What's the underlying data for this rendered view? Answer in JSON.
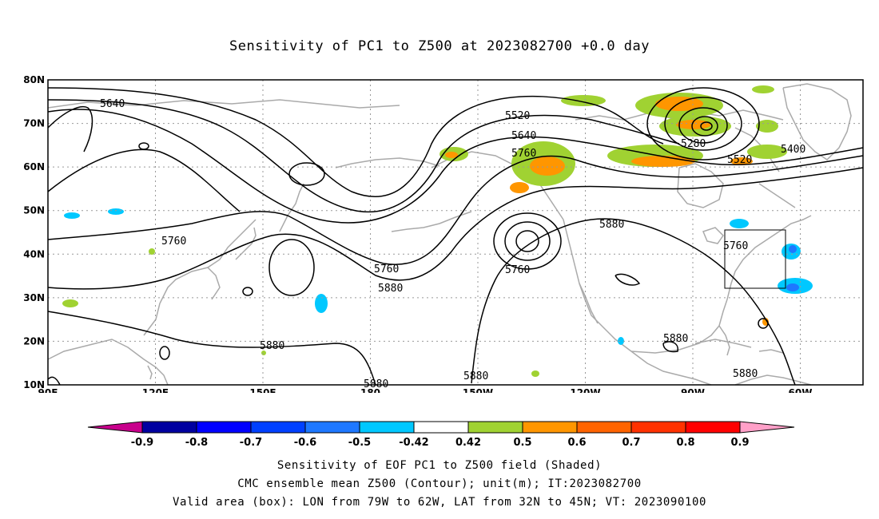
{
  "title": "Sensitivity of PC1 to Z500 at 2023082700 +0.0 day",
  "map": {
    "lon_range": [
      "90E",
      "30W"
    ],
    "lat_range": [
      "10N",
      "80N"
    ],
    "lat_ticks": [
      "80N",
      "70N",
      "60N",
      "50N",
      "40N",
      "30N",
      "20N",
      "10N"
    ],
    "lon_ticks": [
      "90E",
      "120E",
      "150E",
      "180",
      "150W",
      "120W",
      "90W",
      "60W"
    ],
    "grid": "dotted",
    "coastline_color": "#aaaaaa",
    "contour_color": "#000000",
    "contour_labels": [
      "5640",
      "5520",
      "5640",
      "5760",
      "5280",
      "5400",
      "5520",
      "5760",
      "5760",
      "5760",
      "5880",
      "5880",
      "5760",
      "5880",
      "5880",
      "5880",
      "5880",
      "5880",
      "5880"
    ],
    "valid_area_box": {
      "lon": [
        "79W",
        "62W"
      ],
      "lat": [
        "32N",
        "45N"
      ]
    }
  },
  "colorbar": {
    "labels": [
      "-0.9",
      "-0.8",
      "-0.7",
      "-0.6",
      "-0.5",
      "-0.42",
      "0.42",
      "0.5",
      "0.6",
      "0.7",
      "0.8",
      "0.9"
    ],
    "colors": [
      "#0000a0",
      "#0000ff",
      "#0040ff",
      "#1e78ff",
      "#00c8ff",
      "#ffffff",
      "#a0d232",
      "#ff9600",
      "#ff6400",
      "#ff3200",
      "#ff0000"
    ],
    "low_end_color": "#c8008c",
    "high_end_color": "#ffa0c8"
  },
  "footer": {
    "line1": "Sensitivity of EOF PC1 to Z500 field (Shaded)",
    "line2": "CMC ensemble mean Z500 (Contour); unit(m); IT:2023082700",
    "line3": "Valid area (box): LON from 79W to 62W, LAT from 32N to 45N; VT: 2023090100"
  }
}
